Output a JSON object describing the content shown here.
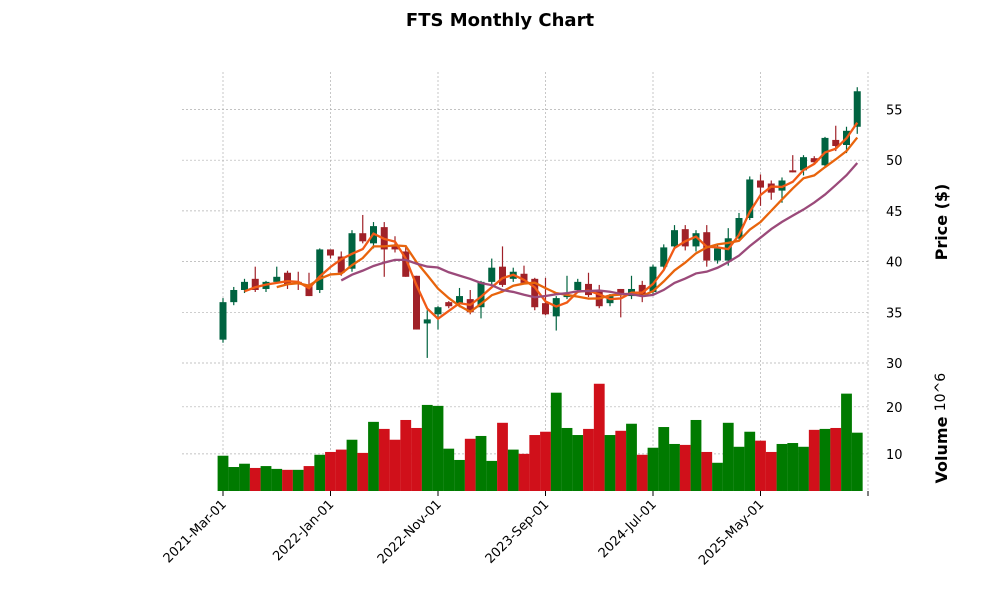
{
  "chart_data": {
    "type": "candlestick",
    "title": "FTS Monthly Chart",
    "ylabel_price": "Price ($)",
    "ylabel_volume": "Volume",
    "volume_exponent": "10^6",
    "xtick_labels": [
      "2021-Mar-01",
      "2022-Jan-01",
      "2022-Nov-01",
      "2023-Sep-01",
      "2024-Jul-01",
      "2025-May-01"
    ],
    "price_ticks": [
      30,
      35,
      40,
      45,
      50,
      55
    ],
    "volume_ticks": [
      10,
      20
    ],
    "price_ylim": [
      29.9,
      58.7
    ],
    "volume_ylim": [
      2.1,
      29.1
    ],
    "grid": true,
    "moving_averages": [
      3,
      6,
      12
    ],
    "colors": {
      "up": "#006340",
      "down": "#a02128",
      "vol_up": "#007a00",
      "vol_down": "#d0101a",
      "ma3": "#f15a16",
      "ma6": "#e8640c",
      "ma12": "#9b4a7a"
    },
    "ohlc": [
      [
        32.3,
        36.4,
        32.0,
        36.0
      ],
      [
        36.0,
        37.5,
        35.7,
        37.2
      ],
      [
        37.2,
        38.3,
        36.9,
        38.0
      ],
      [
        38.3,
        39.5,
        37.0,
        37.2
      ],
      [
        37.3,
        38.1,
        37.0,
        38.0
      ],
      [
        38.0,
        39.5,
        37.9,
        38.5
      ],
      [
        38.9,
        39.1,
        37.3,
        37.7
      ],
      [
        38.0,
        39.0,
        37.2,
        37.8
      ],
      [
        37.7,
        38.9,
        36.6,
        36.6
      ],
      [
        37.2,
        41.3,
        36.9,
        41.2
      ],
      [
        41.2,
        41.2,
        40.3,
        40.6
      ],
      [
        40.5,
        41.0,
        38.6,
        38.9
      ],
      [
        39.3,
        43.1,
        39.0,
        42.8
      ],
      [
        42.8,
        44.6,
        41.8,
        42.0
      ],
      [
        41.8,
        43.9,
        41.3,
        43.5
      ],
      [
        43.4,
        43.9,
        38.5,
        41.2
      ],
      [
        41.5,
        42.5,
        40.9,
        41.2
      ],
      [
        41.0,
        41.5,
        38.5,
        38.5
      ],
      [
        38.6,
        38.6,
        33.3,
        33.3
      ],
      [
        33.9,
        35.2,
        30.5,
        34.3
      ],
      [
        34.8,
        35.6,
        33.3,
        35.5
      ],
      [
        36.0,
        36.1,
        35.4,
        35.6
      ],
      [
        35.9,
        37.4,
        35.5,
        36.6
      ],
      [
        36.3,
        37.2,
        34.8,
        35.0
      ],
      [
        35.5,
        38.1,
        34.4,
        38.0
      ],
      [
        38.0,
        40.3,
        37.6,
        39.4
      ],
      [
        39.5,
        41.5,
        37.5,
        37.7
      ],
      [
        38.3,
        39.4,
        38.0,
        39.0
      ],
      [
        38.8,
        39.6,
        37.8,
        37.9
      ],
      [
        38.3,
        38.4,
        35.2,
        35.5
      ],
      [
        35.9,
        38.4,
        34.7,
        34.8
      ],
      [
        34.6,
        36.6,
        33.2,
        36.4
      ],
      [
        36.5,
        38.6,
        36.3,
        36.7
      ],
      [
        37.2,
        38.3,
        36.9,
        38.0
      ],
      [
        37.8,
        38.9,
        36.5,
        36.7
      ],
      [
        37.2,
        37.7,
        35.4,
        35.6
      ],
      [
        35.9,
        36.8,
        35.6,
        36.6
      ],
      [
        37.3,
        37.3,
        34.5,
        36.9
      ],
      [
        36.6,
        38.6,
        36.3,
        37.3
      ],
      [
        37.7,
        38.1,
        36.0,
        36.6
      ],
      [
        37.0,
        39.7,
        36.8,
        39.5
      ],
      [
        39.5,
        41.7,
        39.3,
        41.4
      ],
      [
        41.5,
        43.6,
        41.3,
        43.1
      ],
      [
        43.2,
        43.6,
        41.1,
        41.5
      ],
      [
        41.5,
        43.1,
        41.0,
        42.8
      ],
      [
        42.9,
        43.6,
        39.5,
        40.1
      ],
      [
        40.1,
        41.7,
        39.8,
        41.3
      ],
      [
        40.1,
        43.3,
        39.6,
        42.3
      ],
      [
        42.3,
        44.8,
        42.2,
        44.3
      ],
      [
        44.3,
        48.4,
        44.1,
        48.1
      ],
      [
        48.0,
        48.6,
        45.5,
        47.3
      ],
      [
        47.7,
        48.0,
        46.1,
        46.8
      ],
      [
        47.0,
        48.3,
        45.8,
        48.0
      ],
      [
        49.0,
        50.5,
        48.8,
        48.8
      ],
      [
        49.0,
        50.5,
        48.5,
        50.3
      ],
      [
        50.2,
        50.4,
        49.7,
        49.8
      ],
      [
        49.5,
        52.3,
        49.3,
        52.2
      ],
      [
        52.0,
        53.4,
        50.9,
        51.4
      ],
      [
        51.5,
        53.3,
        50.7,
        52.9
      ],
      [
        53.3,
        57.2,
        52.6,
        56.8
      ]
    ],
    "volume": [
      9.6,
      7.2,
      7.9,
      7.0,
      7.4,
      6.8,
      6.6,
      6.6,
      7.4,
      9.8,
      10.4,
      10.9,
      13.0,
      10.2,
      16.8,
      15.3,
      13.0,
      17.2,
      15.5,
      20.4,
      20.2,
      11.1,
      8.7,
      13.2,
      13.8,
      8.5,
      16.6,
      10.9,
      10.0,
      14.0,
      14.7,
      23.0,
      15.5,
      14.0,
      15.3,
      24.9,
      14.0,
      14.9,
      16.4,
      9.8,
      11.3,
      15.7,
      12.1,
      11.9,
      17.2,
      10.4,
      8.1,
      16.6,
      11.5,
      14.7,
      12.8,
      10.4,
      12.1,
      12.3,
      11.5,
      15.1,
      15.3,
      15.5,
      22.8,
      14.5
    ],
    "volume_up": [
      1,
      1,
      1,
      0,
      1,
      1,
      0,
      1,
      0,
      1,
      0,
      0,
      1,
      0,
      1,
      0,
      0,
      0,
      0,
      1,
      1,
      1,
      1,
      0,
      1,
      1,
      0,
      1,
      0,
      0,
      0,
      1,
      1,
      1,
      0,
      0,
      1,
      0,
      1,
      0,
      1,
      1,
      1,
      0,
      1,
      0,
      1,
      1,
      1,
      1,
      0,
      0,
      1,
      1,
      1,
      0,
      1,
      0,
      1,
      1
    ]
  }
}
